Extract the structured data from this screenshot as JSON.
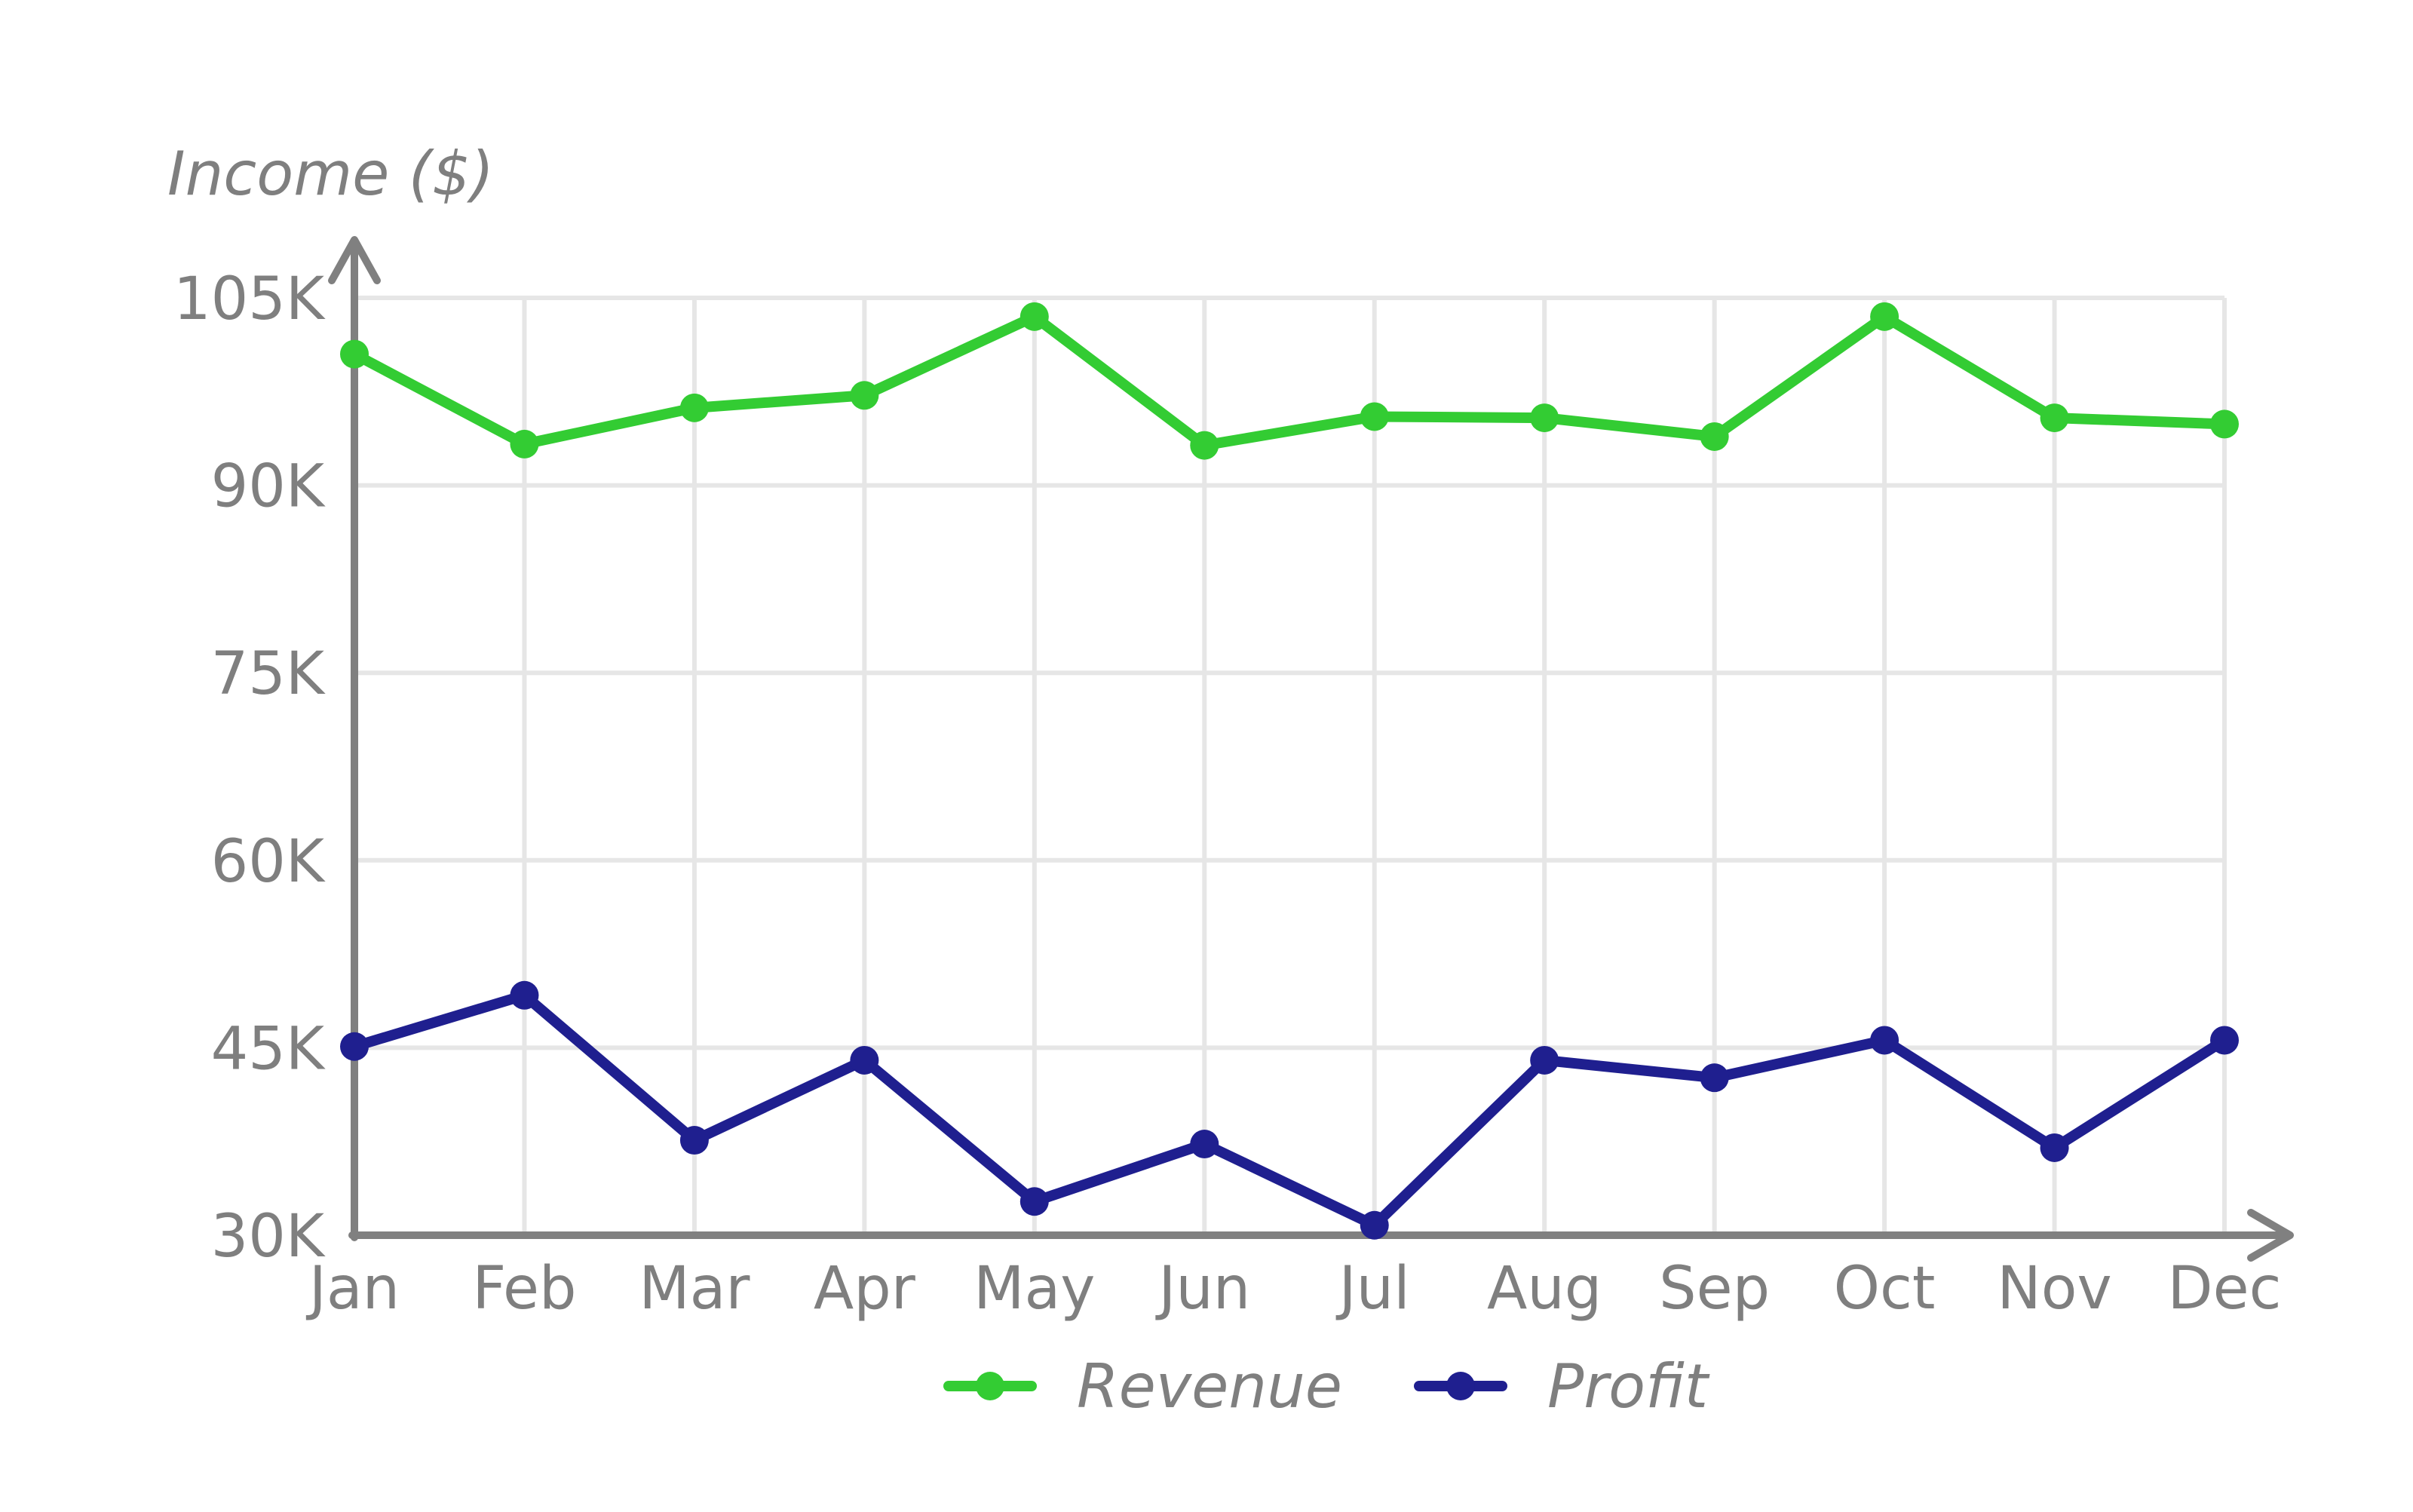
{
  "chart_data": {
    "type": "line",
    "title": "",
    "xlabel": "",
    "ylabel": "Income ($)",
    "categories": [
      "Jan",
      "Feb",
      "Mar",
      "Apr",
      "May",
      "Jun",
      "Jul",
      "Aug",
      "Sep",
      "Oct",
      "Nov",
      "Dec"
    ],
    "y_ticks": [
      30000,
      45000,
      60000,
      75000,
      90000,
      105000
    ],
    "y_tick_labels": [
      "30K",
      "45K",
      "60K",
      "75K",
      "90K",
      "105K"
    ],
    "ylim": [
      30000,
      105000
    ],
    "grid": true,
    "legend_position": "bottom",
    "series": [
      {
        "name": "Revenue",
        "color": "#33cc33",
        "values": [
          100500,
          93300,
          96200,
          97200,
          103500,
          93200,
          95500,
          95400,
          93900,
          103500,
          95400,
          94900
        ]
      },
      {
        "name": "Profit",
        "color": "#1f1f8f",
        "values": [
          45100,
          49200,
          37600,
          44000,
          32700,
          37300,
          30800,
          44000,
          42600,
          45600,
          37000,
          45600
        ]
      }
    ],
    "colors": {
      "axis": "#808080",
      "grid": "#e6e6e6",
      "text": "#7f7f7f"
    }
  }
}
